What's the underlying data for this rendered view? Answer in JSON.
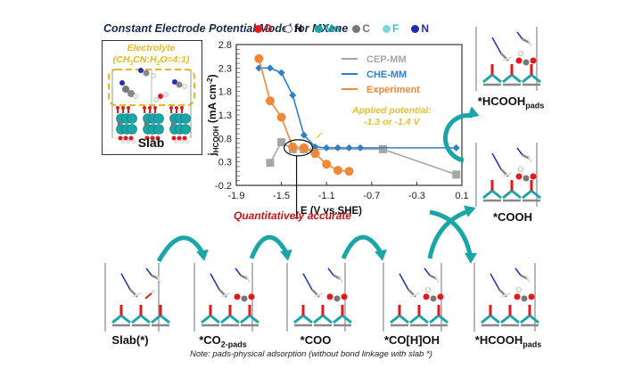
{
  "title": "Constant Electrode Potential Model for MXene",
  "atom_legend": [
    {
      "symbol": "O",
      "color": "#e31a1c",
      "text_color": "#e31a1c"
    },
    {
      "symbol": "H",
      "color": "#ffffff",
      "text_color": "#111111"
    },
    {
      "symbol": "Mo",
      "color": "#1aa6a6",
      "text_color": "#1aa6a6"
    },
    {
      "symbol": "C",
      "color": "#777777",
      "text_color": "#777777"
    },
    {
      "symbol": "F",
      "color": "#7fd6e0",
      "text_color": "#44c0d0"
    },
    {
      "symbol": "N",
      "color": "#1f2fb0",
      "text_color": "#1f2fb0"
    }
  ],
  "slab_panel": {
    "electrolyte_title": "Electrolyte",
    "electrolyte_ratio": "(CH3CN:H2O=4:1)",
    "label": "Slab"
  },
  "annotations": {
    "applied_potential_line1": "Applied potential:",
    "applied_potential_line2": "-1.3 or -1.4 V",
    "quantitatively_accurate": "Quantitatively accurate",
    "note": "Note: pads-physical adsorption (without bond linkage with slab *)"
  },
  "states": [
    {
      "id": "slab",
      "label": "Slab(*)",
      "sub": ""
    },
    {
      "id": "co2",
      "label": "*CO",
      "sub": "2-pads"
    },
    {
      "id": "coo",
      "label": "*COO",
      "sub": ""
    },
    {
      "id": "cohoh",
      "label": "*CO[H]OH",
      "sub": ""
    },
    {
      "id": "hcooh-bottom",
      "label": "*HCOOH",
      "sub": "pads"
    },
    {
      "id": "cooh",
      "label": "*COOH",
      "sub": ""
    },
    {
      "id": "hcooh-top",
      "label": "*HCOOH",
      "sub": "pads"
    }
  ],
  "colors": {
    "arrow": "#1aa6a6",
    "cep": "#a6a6a6",
    "che": "#2f7fc8",
    "experiment": "#f0883a",
    "highlight": "#e8c030",
    "accent_red": "#c4141c"
  },
  "chart_data": {
    "type": "line",
    "title": "",
    "xlabel": "E (V vs.SHE)",
    "ylabel": "jHCOOH (mA cm-2)",
    "xlim": [
      -1.9,
      0.1
    ],
    "ylim": [
      -0.2,
      2.8
    ],
    "xticks": [
      "-1.9",
      "-1.5",
      "-1.1",
      "-0.7",
      "-0.3",
      "0.1"
    ],
    "yticks": [
      "-0.2",
      "0.3",
      "0.8",
      "1.3",
      "1.8",
      "2.3",
      "2.8"
    ],
    "legend_position": "upper right",
    "series": [
      {
        "name": "CEP-MM",
        "marker": "square",
        "x": [
          -1.6,
          -1.5,
          -1.4,
          -1.3,
          -0.6,
          0.05
        ],
        "y": [
          0.28,
          0.72,
          0.57,
          0.57,
          0.57,
          0.03
        ]
      },
      {
        "name": "CHE-MM",
        "marker": "diamond",
        "x": [
          -1.7,
          -1.6,
          -1.5,
          -1.4,
          -1.3,
          -1.2,
          -1.1,
          -1.0,
          -0.9,
          -0.8,
          0.05
        ],
        "y": [
          2.3,
          2.3,
          2.2,
          1.72,
          0.87,
          0.62,
          0.6,
          0.6,
          0.6,
          0.6,
          0.6
        ]
      },
      {
        "name": "Experiment",
        "marker": "circle",
        "x": [
          -1.7,
          -1.6,
          -1.5,
          -1.4,
          -1.3,
          -1.2,
          -1.1,
          -1.0,
          -0.9
        ],
        "y": [
          2.5,
          1.6,
          1.25,
          0.62,
          0.6,
          0.48,
          0.25,
          0.12,
          0.1
        ]
      }
    ]
  }
}
